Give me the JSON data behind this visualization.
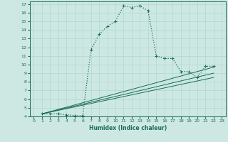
{
  "xlabel": "Humidex (Indice chaleur)",
  "bg_color": "#cde8e2",
  "grid_color": "#b0d8d0",
  "line_color": "#1a6b5a",
  "xlim": [
    -0.5,
    23.5
  ],
  "ylim": [
    4,
    17.3
  ],
  "xticks": [
    0,
    1,
    2,
    3,
    4,
    5,
    6,
    7,
    8,
    9,
    10,
    11,
    12,
    13,
    14,
    15,
    16,
    17,
    18,
    19,
    20,
    21,
    22,
    23
  ],
  "yticks": [
    4,
    5,
    6,
    7,
    8,
    9,
    10,
    11,
    12,
    13,
    14,
    15,
    16,
    17
  ],
  "series_main_x": [
    1,
    2,
    3,
    4,
    5,
    6,
    7,
    8,
    9,
    10,
    11,
    12,
    13,
    14,
    15,
    16,
    17,
    18,
    19,
    20,
    21,
    22
  ],
  "series_main_y": [
    4.3,
    4.3,
    4.3,
    4.2,
    4.1,
    4.1,
    11.7,
    13.5,
    14.4,
    15.0,
    16.8,
    16.6,
    16.8,
    16.2,
    11.0,
    10.7,
    10.7,
    9.2,
    9.2,
    8.5,
    9.8,
    9.8
  ],
  "series_line1_x": [
    1,
    22
  ],
  "series_line1_y": [
    4.3,
    9.7
  ],
  "series_line2_x": [
    1,
    22
  ],
  "series_line2_y": [
    4.3,
    9.0
  ],
  "series_line3_x": [
    1,
    22
  ],
  "series_line3_y": [
    4.3,
    8.5
  ],
  "marker_main_x": [
    1,
    2,
    3,
    4,
    5,
    6,
    7,
    8,
    9,
    10,
    11,
    12,
    13,
    14,
    15,
    16,
    17,
    18,
    19,
    20,
    21,
    22
  ],
  "marker_main_y": [
    4.3,
    4.3,
    4.3,
    4.2,
    4.1,
    4.1,
    11.7,
    13.5,
    14.4,
    15.0,
    16.8,
    16.6,
    16.8,
    16.2,
    11.0,
    10.7,
    10.7,
    9.2,
    9.2,
    8.5,
    9.8,
    9.8
  ]
}
